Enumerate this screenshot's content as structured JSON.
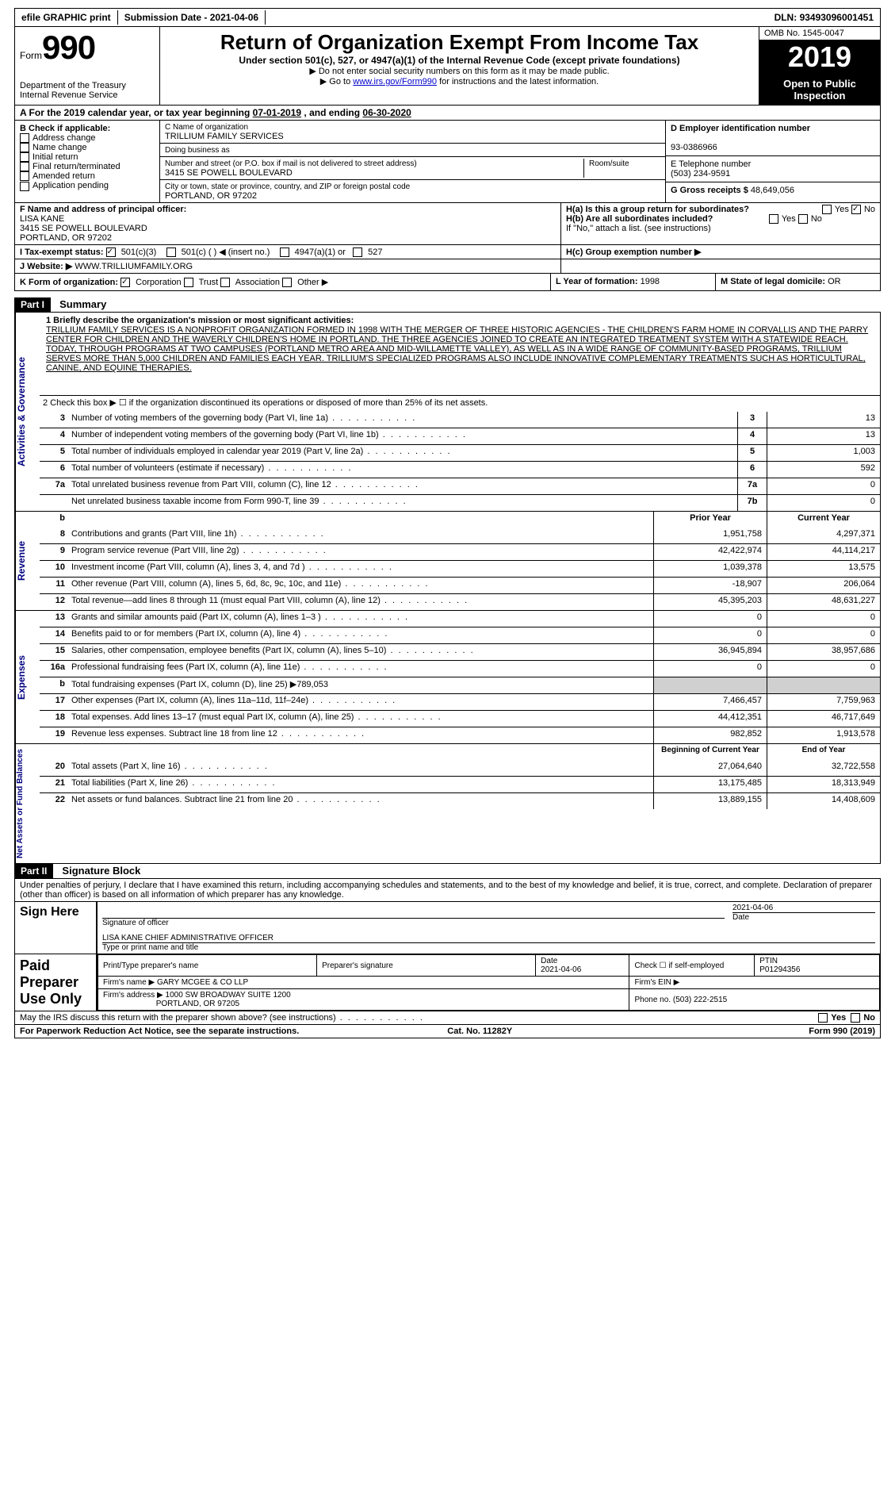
{
  "topbar": {
    "efile": "efile GRAPHIC print",
    "sub_label": "Submission Date - ",
    "sub_date": "2021-04-06",
    "dln_label": "DLN: ",
    "dln": "93493096001451"
  },
  "header": {
    "form": "Form",
    "form_no": "990",
    "dept": "Department of the Treasury\nInternal Revenue Service",
    "title": "Return of Organization Exempt From Income Tax",
    "sub": "Under section 501(c), 527, or 4947(a)(1) of the Internal Revenue Code (except private foundations)",
    "note1": "▶ Do not enter social security numbers on this form as it may be made public.",
    "note2_pre": "▶ Go to ",
    "note2_link": "www.irs.gov/Form990",
    "note2_post": " for instructions and the latest information.",
    "omb": "OMB No. 1545-0047",
    "year": "2019",
    "open": "Open to Public Inspection"
  },
  "A": {
    "text": "A For the 2019 calendar year, or tax year beginning ",
    "begin": "07-01-2019",
    "mid": " , and ending ",
    "end": "06-30-2020"
  },
  "B": {
    "title": "B Check if applicable:",
    "items": [
      "Address change",
      "Name change",
      "Initial return",
      "Final return/terminated",
      "Amended return",
      "Application pending"
    ]
  },
  "C": {
    "name_label": "C Name of organization",
    "name": "TRILLIUM FAMILY SERVICES",
    "dba_label": "Doing business as",
    "addr_label": "Number and street (or P.O. box if mail is not delivered to street address)",
    "addr": "3415 SE POWELL BOULEVARD",
    "room_label": "Room/suite",
    "city_label": "City or town, state or province, country, and ZIP or foreign postal code",
    "city": "PORTLAND, OR  97202"
  },
  "D": {
    "label": "D Employer identification number",
    "val": "93-0386966"
  },
  "E": {
    "label": "E Telephone number",
    "val": "(503) 234-9591"
  },
  "G": {
    "label": "G Gross receipts $",
    "val": "48,649,056"
  },
  "F": {
    "label": "F  Name and address of principal officer:",
    "name": "LISA KANE",
    "addr1": "3415 SE POWELL BOULEVARD",
    "addr2": "PORTLAND, OR  97202"
  },
  "H": {
    "a": "H(a)  Is this a group return for subordinates?",
    "b": "H(b)  Are all subordinates included?",
    "b_note": "If \"No,\" attach a list. (see instructions)",
    "c": "H(c)  Group exemption number ▶",
    "yes": "Yes",
    "no": "No"
  },
  "I": {
    "label": "I   Tax-exempt status:",
    "opts": [
      "501(c)(3)",
      "501(c) (  ) ◀ (insert no.)",
      "4947(a)(1) or",
      "527"
    ]
  },
  "J": {
    "label": "J   Website: ▶",
    "val": "WWW.TRILLIUMFAMILY.ORG"
  },
  "K": {
    "label": "K Form of organization:",
    "opts": [
      "Corporation",
      "Trust",
      "Association",
      "Other ▶"
    ]
  },
  "L": {
    "label": "L Year of formation:",
    "val": "1998"
  },
  "M": {
    "label": "M State of legal domicile:",
    "val": "OR"
  },
  "part1": {
    "hdr": "Part I",
    "title": "Summary"
  },
  "mission": {
    "label": "1   Briefly describe the organization's mission or most significant activities:",
    "text": "TRILLIUM FAMILY SERVICES IS A NONPROFIT ORGANIZATION FORMED IN 1998 WITH THE MERGER OF THREE HISTORIC AGENCIES - THE CHILDREN'S FARM HOME IN CORVALLIS AND THE PARRY CENTER FOR CHILDREN AND THE WAVERLY CHILDREN'S HOME IN PORTLAND. THE THREE AGENCIES JOINED TO CREATE AN INTEGRATED TREATMENT SYSTEM WITH A STATEWIDE REACH. TODAY, THROUGH PROGRAMS AT TWO CAMPUSES (PORTLAND METRO AREA AND MID-WILLAMETTE VALLEY), AS WELL AS IN A WIDE RANGE OF COMMUNITY-BASED PROGRAMS, TRILLIUM SERVES MORE THAN 5,000 CHILDREN AND FAMILIES EACH YEAR. TRILLIUM'S SPECIALIZED PROGRAMS ALSO INCLUDE INNOVATIVE COMPLEMENTARY TREATMENTS SUCH AS HORTICULTURAL, CANINE, AND EQUINE THERAPIES."
  },
  "line2": "2   Check this box ▶ ☐ if the organization discontinued its operations or disposed of more than 25% of its net assets.",
  "gov_lines": [
    {
      "n": "3",
      "d": "Number of voting members of the governing body (Part VI, line 1a)",
      "c": "3",
      "v": "13"
    },
    {
      "n": "4",
      "d": "Number of independent voting members of the governing body (Part VI, line 1b)",
      "c": "4",
      "v": "13"
    },
    {
      "n": "5",
      "d": "Total number of individuals employed in calendar year 2019 (Part V, line 2a)",
      "c": "5",
      "v": "1,003"
    },
    {
      "n": "6",
      "d": "Total number of volunteers (estimate if necessary)",
      "c": "6",
      "v": "592"
    },
    {
      "n": "7a",
      "d": "Total unrelated business revenue from Part VIII, column (C), line 12",
      "c": "7a",
      "v": "0"
    },
    {
      "n": "",
      "d": "Net unrelated business taxable income from Form 990-T, line 39",
      "c": "7b",
      "v": "0"
    }
  ],
  "cols": {
    "prior": "Prior Year",
    "current": "Current Year",
    "begin": "Beginning of Current Year",
    "end": "End of Year"
  },
  "rev": [
    {
      "n": "8",
      "d": "Contributions and grants (Part VIII, line 1h)",
      "p": "1,951,758",
      "c": "4,297,371"
    },
    {
      "n": "9",
      "d": "Program service revenue (Part VIII, line 2g)",
      "p": "42,422,974",
      "c": "44,114,217"
    },
    {
      "n": "10",
      "d": "Investment income (Part VIII, column (A), lines 3, 4, and 7d )",
      "p": "1,039,378",
      "c": "13,575"
    },
    {
      "n": "11",
      "d": "Other revenue (Part VIII, column (A), lines 5, 6d, 8c, 9c, 10c, and 11e)",
      "p": "-18,907",
      "c": "206,064"
    },
    {
      "n": "12",
      "d": "Total revenue—add lines 8 through 11 (must equal Part VIII, column (A), line 12)",
      "p": "45,395,203",
      "c": "48,631,227"
    }
  ],
  "exp": [
    {
      "n": "13",
      "d": "Grants and similar amounts paid (Part IX, column (A), lines 1–3 )",
      "p": "0",
      "c": "0"
    },
    {
      "n": "14",
      "d": "Benefits paid to or for members (Part IX, column (A), line 4)",
      "p": "0",
      "c": "0"
    },
    {
      "n": "15",
      "d": "Salaries, other compensation, employee benefits (Part IX, column (A), lines 5–10)",
      "p": "36,945,894",
      "c": "38,957,686"
    },
    {
      "n": "16a",
      "d": "Professional fundraising fees (Part IX, column (A), line 11e)",
      "p": "0",
      "c": "0"
    },
    {
      "n": "b",
      "d": "Total fundraising expenses (Part IX, column (D), line 25) ▶789,053",
      "p": "",
      "c": "",
      "shade": true
    },
    {
      "n": "17",
      "d": "Other expenses (Part IX, column (A), lines 11a–11d, 11f–24e)",
      "p": "7,466,457",
      "c": "7,759,963"
    },
    {
      "n": "18",
      "d": "Total expenses. Add lines 13–17 (must equal Part IX, column (A), line 25)",
      "p": "44,412,351",
      "c": "46,717,649"
    },
    {
      "n": "19",
      "d": "Revenue less expenses. Subtract line 18 from line 12",
      "p": "982,852",
      "c": "1,913,578"
    }
  ],
  "net": [
    {
      "n": "20",
      "d": "Total assets (Part X, line 16)",
      "p": "27,064,640",
      "c": "32,722,558"
    },
    {
      "n": "21",
      "d": "Total liabilities (Part X, line 26)",
      "p": "13,175,485",
      "c": "18,313,949"
    },
    {
      "n": "22",
      "d": "Net assets or fund balances. Subtract line 21 from line 20",
      "p": "13,889,155",
      "c": "14,408,609"
    }
  ],
  "part2": {
    "hdr": "Part II",
    "title": "Signature Block"
  },
  "sig": {
    "decl": "Under penalties of perjury, I declare that I have examined this return, including accompanying schedules and statements, and to the best of my knowledge and belief, it is true, correct, and complete. Declaration of preparer (other than officer) is based on all information of which preparer has any knowledge.",
    "sign_here": "Sign Here",
    "sig_officer": "Signature of officer",
    "date": "2021-04-06",
    "date_lbl": "Date",
    "name": "LISA KANE  CHIEF ADMINISTRATIVE OFFICER",
    "name_lbl": "Type or print name and title",
    "paid": "Paid Preparer Use Only",
    "prep_name_lbl": "Print/Type preparer's name",
    "prep_sig_lbl": "Preparer's signature",
    "prep_date": "2021-04-06",
    "check_self": "Check ☐ if self-employed",
    "ptin_lbl": "PTIN",
    "ptin": "P01294356",
    "firm_name_lbl": "Firm's name    ▶",
    "firm_name": "GARY MCGEE & CO LLP",
    "firm_ein_lbl": "Firm's EIN ▶",
    "firm_addr_lbl": "Firm's address ▶",
    "firm_addr": "1000 SW BROADWAY SUITE 1200",
    "firm_city": "PORTLAND, OR  97205",
    "phone_lbl": "Phone no.",
    "phone": "(503) 222-2515",
    "discuss": "May the IRS discuss this return with the preparer shown above? (see instructions)"
  },
  "foot": {
    "l": "For Paperwork Reduction Act Notice, see the separate instructions.",
    "m": "Cat. No. 11282Y",
    "r": "Form 990 (2019)"
  },
  "vtabs": {
    "gov": "Activities & Governance",
    "rev": "Revenue",
    "exp": "Expenses",
    "net": "Net Assets or Fund Balances"
  }
}
